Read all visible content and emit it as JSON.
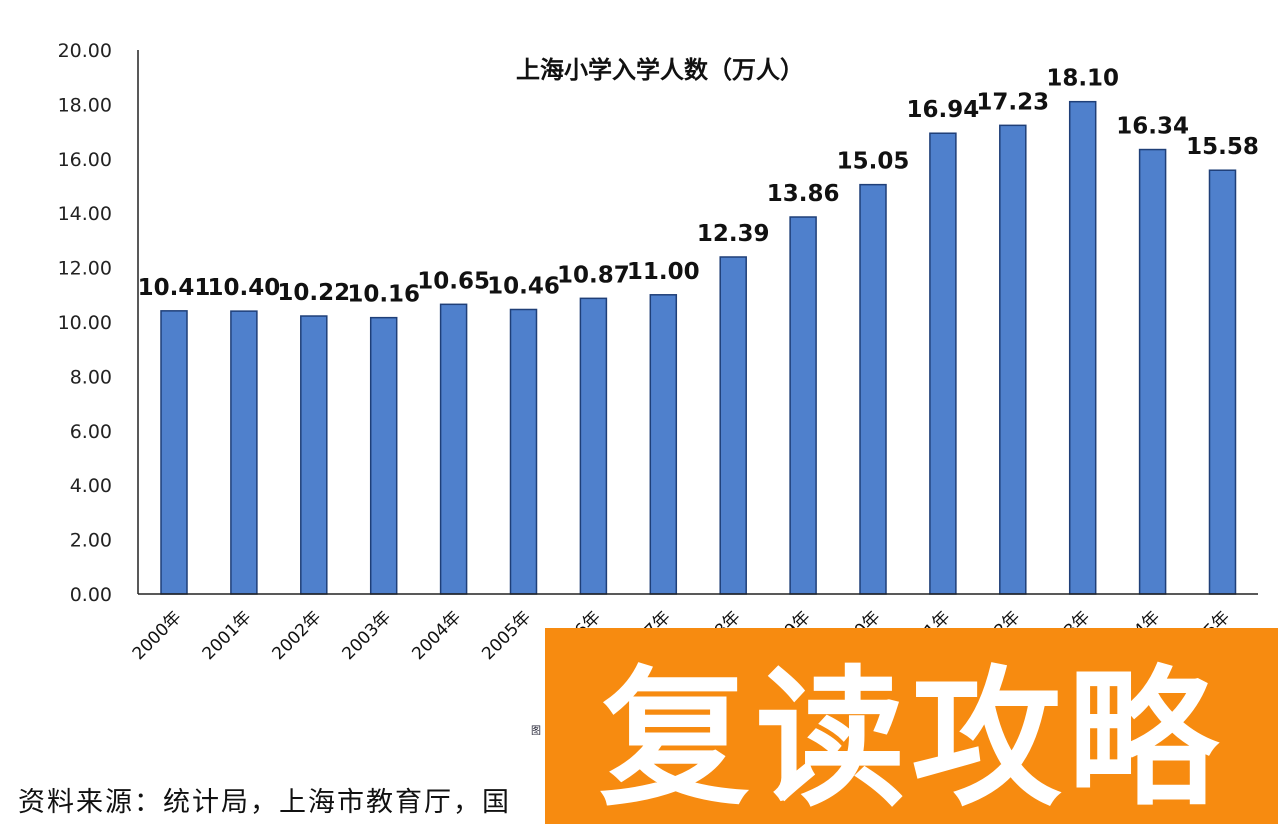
{
  "chart_data": {
    "type": "bar",
    "title": "上海小学入学人数（万人）",
    "categories": [
      "2000年",
      "2001年",
      "2002年",
      "2003年",
      "2004年",
      "2005年",
      "2006年",
      "2007年",
      "2008年",
      "2009年",
      "2010年",
      "2011年",
      "2012年",
      "2013年",
      "2014年",
      "2015年"
    ],
    "values": [
      10.41,
      10.4,
      10.22,
      10.16,
      10.65,
      10.46,
      10.87,
      11.0,
      12.39,
      13.86,
      15.05,
      16.94,
      17.23,
      18.1,
      16.34,
      15.58
    ],
    "data_labels": [
      "10.41",
      "10.40",
      "10.22",
      "10.16",
      "10.65",
      "10.46",
      "10.87",
      "11.00",
      "12.39",
      "13.86",
      "15.05",
      "16.94",
      "17.23",
      "18.10",
      "16.34",
      "15.58"
    ],
    "yticks": [
      "0.00",
      "2.00",
      "4.00",
      "6.00",
      "8.00",
      "10.00",
      "12.00",
      "14.00",
      "16.00",
      "18.00",
      "20.00"
    ],
    "ylim": [
      0,
      20
    ],
    "xlabel": "",
    "ylabel": "",
    "grid": false,
    "bar_color": "#4f80cc",
    "bar_edge_color": "#1f3f78"
  },
  "figure_note": "图",
  "source": "资料来源：统计局，上海市教育厅，国",
  "watermark": {
    "text": "复读攻略",
    "color": "#f78b10"
  }
}
